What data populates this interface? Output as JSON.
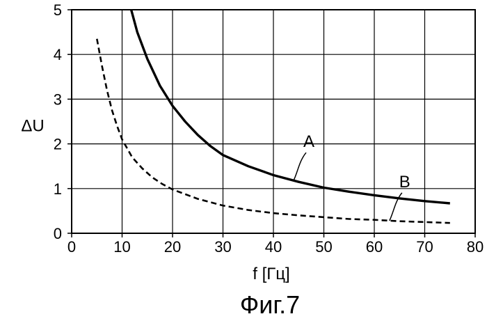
{
  "chart_data": {
    "type": "line",
    "xlabel": "f [Гц]",
    "ylabel": "ΔU",
    "caption": "Фиг.7",
    "xlim": [
      0,
      80
    ],
    "ylim": [
      0,
      5
    ],
    "x_ticks": [
      0,
      10,
      20,
      30,
      40,
      50,
      60,
      70,
      80
    ],
    "y_ticks": [
      0,
      1,
      2,
      3,
      4,
      5
    ],
    "grid": true,
    "series": [
      {
        "name": "A",
        "style": "solid",
        "color": "#000000",
        "x": [
          11.8,
          13,
          15,
          17.5,
          20,
          22.5,
          25,
          27.5,
          30,
          35,
          40,
          45,
          50,
          55,
          60,
          65,
          70,
          75
        ],
        "y": [
          5.0,
          4.5,
          3.9,
          3.3,
          2.85,
          2.5,
          2.2,
          1.95,
          1.75,
          1.5,
          1.3,
          1.15,
          1.02,
          0.93,
          0.85,
          0.78,
          0.72,
          0.67
        ]
      },
      {
        "name": "B",
        "style": "dashed",
        "color": "#000000",
        "x": [
          5,
          6,
          7,
          8,
          9,
          10,
          12,
          14,
          16,
          18,
          20,
          25,
          30,
          35,
          40,
          45,
          50,
          55,
          60,
          65,
          70,
          75
        ],
        "y": [
          4.35,
          3.75,
          3.2,
          2.75,
          2.4,
          2.1,
          1.7,
          1.45,
          1.25,
          1.1,
          0.98,
          0.77,
          0.62,
          0.52,
          0.45,
          0.4,
          0.36,
          0.32,
          0.3,
          0.27,
          0.25,
          0.23
        ]
      }
    ],
    "annotations": [
      {
        "text": "A",
        "series": "A",
        "at_x": 44
      },
      {
        "text": "B",
        "series": "B",
        "at_x": 63
      }
    ]
  }
}
